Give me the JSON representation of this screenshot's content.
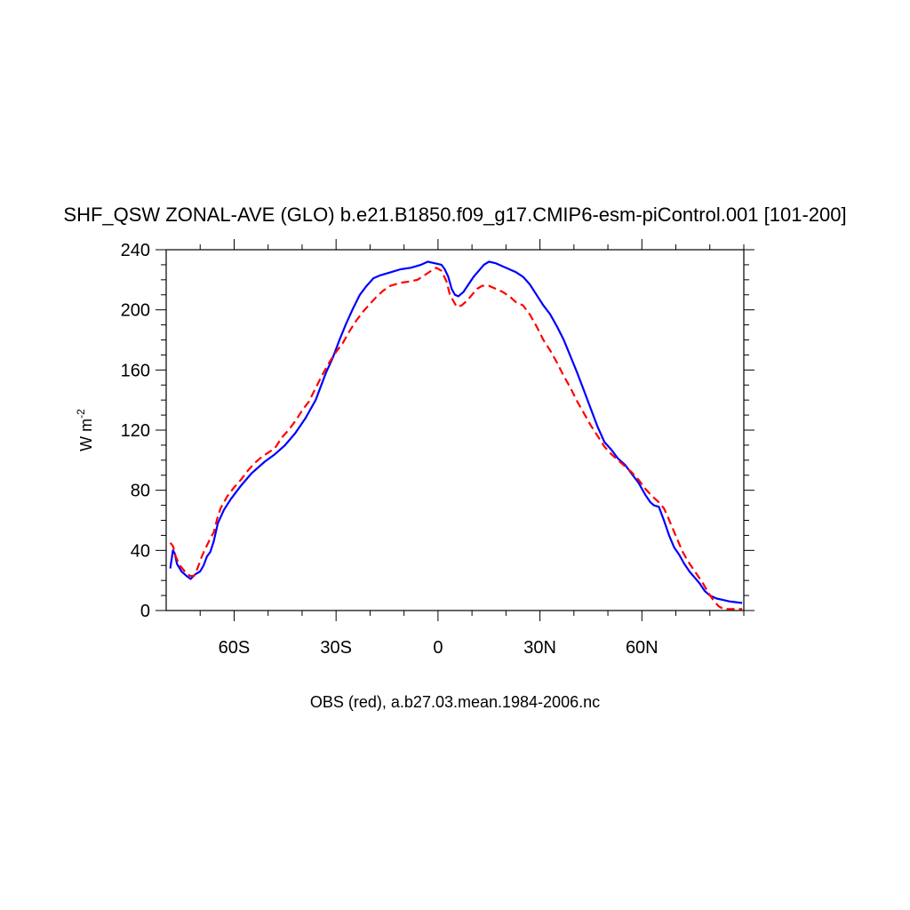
{
  "chart_data": {
    "type": "line",
    "title": "SHF_QSW ZONAL-AVE (GLO) b.e21.B1850.f09_g17.CMIP6-esm-piControl.001 [101-200]",
    "ylabel": "W m",
    "ylabel_sup": "-2",
    "xlabel": "OBS (red), a.b27.03.mean.1984-2006.nc",
    "xlim": [
      -80,
      90
    ],
    "ylim": [
      0,
      240
    ],
    "x_ticks": [
      {
        "value": -60,
        "label": "60S"
      },
      {
        "value": -30,
        "label": "30S"
      },
      {
        "value": 0,
        "label": "0"
      },
      {
        "value": 30,
        "label": "30N"
      },
      {
        "value": 60,
        "label": "60N"
      }
    ],
    "y_ticks": [
      {
        "value": 0,
        "label": "0"
      },
      {
        "value": 40,
        "label": "40"
      },
      {
        "value": 80,
        "label": "80"
      },
      {
        "value": 120,
        "label": "120"
      },
      {
        "value": 160,
        "label": "160"
      },
      {
        "value": 200,
        "label": "200"
      },
      {
        "value": 240,
        "label": "240"
      }
    ],
    "grid": false,
    "series": [
      {
        "color": "#0000ff",
        "dash": "solid",
        "points": [
          [
            -78.8,
            28
          ],
          [
            -78.0,
            40
          ],
          [
            -77.5,
            38
          ],
          [
            -76.8,
            31
          ],
          [
            -75.5,
            26
          ],
          [
            -74.0,
            23
          ],
          [
            -72.8,
            21
          ],
          [
            -71.5,
            24
          ],
          [
            -70.0,
            26
          ],
          [
            -69.0,
            30
          ],
          [
            -68.0,
            36
          ],
          [
            -67.0,
            39
          ],
          [
            -66.0,
            46
          ],
          [
            -64.8,
            58
          ],
          [
            -63.0,
            67
          ],
          [
            -61.0,
            74
          ],
          [
            -58.0,
            83
          ],
          [
            -55.0,
            91
          ],
          [
            -51.0,
            99
          ],
          [
            -48.0,
            104
          ],
          [
            -45.0,
            110
          ],
          [
            -42.0,
            118
          ],
          [
            -39.0,
            128
          ],
          [
            -36.0,
            140
          ],
          [
            -33.0,
            158
          ],
          [
            -31.0,
            168
          ],
          [
            -29.0,
            180
          ],
          [
            -27.0,
            191
          ],
          [
            -25.0,
            201
          ],
          [
            -23.0,
            210
          ],
          [
            -21.0,
            216
          ],
          [
            -19.0,
            221
          ],
          [
            -17.0,
            223
          ],
          [
            -14.0,
            225
          ],
          [
            -11.0,
            227
          ],
          [
            -8.0,
            228
          ],
          [
            -5.0,
            230
          ],
          [
            -3.0,
            232
          ],
          [
            -1.0,
            231
          ],
          [
            1.0,
            230
          ],
          [
            2.0,
            227
          ],
          [
            3.0,
            222
          ],
          [
            4.0,
            214
          ],
          [
            5.0,
            210
          ],
          [
            6.0,
            209
          ],
          [
            7.5,
            212
          ],
          [
            9.0,
            217
          ],
          [
            10.5,
            222
          ],
          [
            12.0,
            226
          ],
          [
            13.5,
            230
          ],
          [
            15.0,
            232
          ],
          [
            17.0,
            231
          ],
          [
            19.0,
            229
          ],
          [
            21.0,
            227
          ],
          [
            23.0,
            225
          ],
          [
            25.0,
            222
          ],
          [
            27.0,
            217
          ],
          [
            29.0,
            210
          ],
          [
            31.0,
            203
          ],
          [
            33.0,
            197
          ],
          [
            35.0,
            189
          ],
          [
            37.0,
            180
          ],
          [
            39.0,
            169
          ],
          [
            41.0,
            158
          ],
          [
            43.0,
            146
          ],
          [
            45.0,
            134
          ],
          [
            47.0,
            122
          ],
          [
            49.0,
            112
          ],
          [
            51.0,
            107
          ],
          [
            53.0,
            101
          ],
          [
            55.0,
            97
          ],
          [
            57.0,
            91
          ],
          [
            59.0,
            85
          ],
          [
            61.0,
            77
          ],
          [
            62.5,
            72
          ],
          [
            63.5,
            70
          ],
          [
            65.0,
            69
          ],
          [
            66.5,
            60
          ],
          [
            68.0,
            50
          ],
          [
            69.5,
            42
          ],
          [
            71.0,
            37
          ],
          [
            72.5,
            31
          ],
          [
            74.0,
            26
          ],
          [
            75.5,
            22
          ],
          [
            77.0,
            18
          ],
          [
            78.5,
            13
          ],
          [
            80.0,
            10
          ],
          [
            82.0,
            8
          ],
          [
            84.0,
            7
          ],
          [
            86.0,
            6
          ],
          [
            89.5,
            5
          ]
        ]
      },
      {
        "color": "#ff0000",
        "dash": "dashed",
        "points": [
          [
            -78.8,
            45
          ],
          [
            -78.0,
            43
          ],
          [
            -77.2,
            36
          ],
          [
            -76.0,
            30
          ],
          [
            -74.5,
            26
          ],
          [
            -73.0,
            23
          ],
          [
            -71.8,
            23
          ],
          [
            -70.8,
            28
          ],
          [
            -69.5,
            36
          ],
          [
            -68.5,
            41
          ],
          [
            -67.0,
            48
          ],
          [
            -66.0,
            52
          ],
          [
            -65.0,
            61
          ],
          [
            -64.0,
            68
          ],
          [
            -62.0,
            76
          ],
          [
            -60.0,
            82
          ],
          [
            -58.0,
            87
          ],
          [
            -56.0,
            93
          ],
          [
            -54.0,
            98
          ],
          [
            -52.0,
            102
          ],
          [
            -50.0,
            105
          ],
          [
            -48.0,
            108
          ],
          [
            -46.0,
            115
          ],
          [
            -44.0,
            120
          ],
          [
            -42.0,
            126
          ],
          [
            -40.0,
            133
          ],
          [
            -38.0,
            139
          ],
          [
            -36.0,
            148
          ],
          [
            -34.0,
            157
          ],
          [
            -32.0,
            165
          ],
          [
            -30.0,
            172
          ],
          [
            -28.0,
            178
          ],
          [
            -26.0,
            186
          ],
          [
            -24.0,
            193
          ],
          [
            -22.0,
            199
          ],
          [
            -20.0,
            204
          ],
          [
            -18.0,
            209
          ],
          [
            -16.0,
            213
          ],
          [
            -14.0,
            216
          ],
          [
            -11.0,
            218
          ],
          [
            -8.0,
            219
          ],
          [
            -6.0,
            220
          ],
          [
            -4.0,
            223
          ],
          [
            -2.0,
            226
          ],
          [
            -0.5,
            228
          ],
          [
            1.0,
            226
          ],
          [
            2.5,
            219
          ],
          [
            3.5,
            210
          ],
          [
            4.5,
            206
          ],
          [
            5.5,
            202
          ],
          [
            7.0,
            203
          ],
          [
            8.5,
            206
          ],
          [
            10.0,
            210
          ],
          [
            11.5,
            214
          ],
          [
            13.0,
            216
          ],
          [
            15.0,
            216
          ],
          [
            17.0,
            214
          ],
          [
            19.0,
            212
          ],
          [
            21.0,
            209
          ],
          [
            23.0,
            205
          ],
          [
            25.0,
            203
          ],
          [
            27.0,
            197
          ],
          [
            29.0,
            189
          ],
          [
            31.0,
            180
          ],
          [
            33.0,
            173
          ],
          [
            35.0,
            165
          ],
          [
            37.0,
            156
          ],
          [
            39.0,
            148
          ],
          [
            41.0,
            139
          ],
          [
            43.0,
            131
          ],
          [
            45.0,
            123
          ],
          [
            47.0,
            116
          ],
          [
            49.0,
            109
          ],
          [
            51.0,
            104
          ],
          [
            53.0,
            100
          ],
          [
            55.0,
            96
          ],
          [
            57.0,
            92
          ],
          [
            59.0,
            87
          ],
          [
            61.0,
            81
          ],
          [
            63.0,
            76
          ],
          [
            65.0,
            72
          ],
          [
            66.5,
            68
          ],
          [
            67.5,
            63
          ],
          [
            69.0,
            55
          ],
          [
            70.5,
            47
          ],
          [
            72.0,
            39
          ],
          [
            73.5,
            33
          ],
          [
            75.0,
            28
          ],
          [
            76.5,
            23
          ],
          [
            78.0,
            18
          ],
          [
            79.5,
            12
          ],
          [
            81.0,
            7
          ],
          [
            82.5,
            3
          ],
          [
            84.0,
            1
          ],
          [
            86.0,
            1
          ],
          [
            89.5,
            1
          ]
        ]
      }
    ]
  }
}
